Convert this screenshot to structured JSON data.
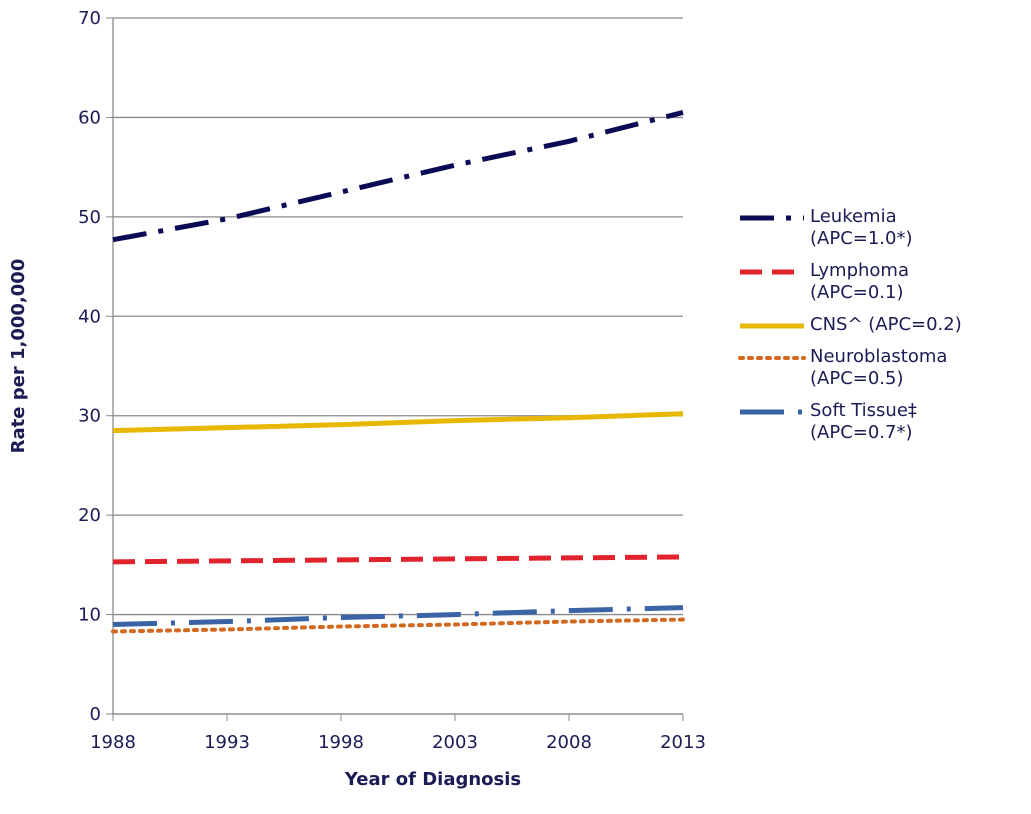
{
  "chart_data": {
    "type": "line",
    "x_label": "Year of Diagnosis",
    "y_label": "Rate per 1,000,000",
    "x": [
      1988,
      1993,
      1998,
      2003,
      2008,
      2013
    ],
    "series": [
      {
        "name": "Leukemia (APC=1.0*)",
        "color": "#0b0b55",
        "dash": "34 12 5 12",
        "values": [
          47.7,
          49.8,
          52.5,
          55.2,
          57.6,
          60.5
        ]
      },
      {
        "name": "Lymphoma (APC=0.1)",
        "color": "#e0232d",
        "dash": "22 10",
        "values": [
          15.3,
          15.4,
          15.5,
          15.6,
          15.7,
          15.8
        ]
      },
      {
        "name": "CNS^ (APC=0.2)",
        "color": "#e8b800",
        "dash": "none",
        "values": [
          28.5,
          28.8,
          29.1,
          29.5,
          29.8,
          30.2
        ]
      },
      {
        "name": "Neuroblastoma (APC=0.5)",
        "color": "#d2691e",
        "dash": "3 6",
        "values": [
          8.3,
          8.5,
          8.8,
          9.0,
          9.3,
          9.5
        ]
      },
      {
        "name": "Soft Tissue‡ (APC=0.7*)",
        "color": "#3a64a6",
        "dash": "44 14 4 14",
        "values": [
          9.0,
          9.3,
          9.7,
          10.0,
          10.4,
          10.7
        ]
      }
    ],
    "xlim": [
      1988,
      2013
    ],
    "xticks": [
      1988,
      1993,
      1998,
      2003,
      2008,
      2013
    ],
    "ylim": [
      0,
      70
    ],
    "yticks": [
      0,
      10,
      20,
      30,
      40,
      50,
      60,
      70
    ],
    "grid": true,
    "legend": "right"
  }
}
